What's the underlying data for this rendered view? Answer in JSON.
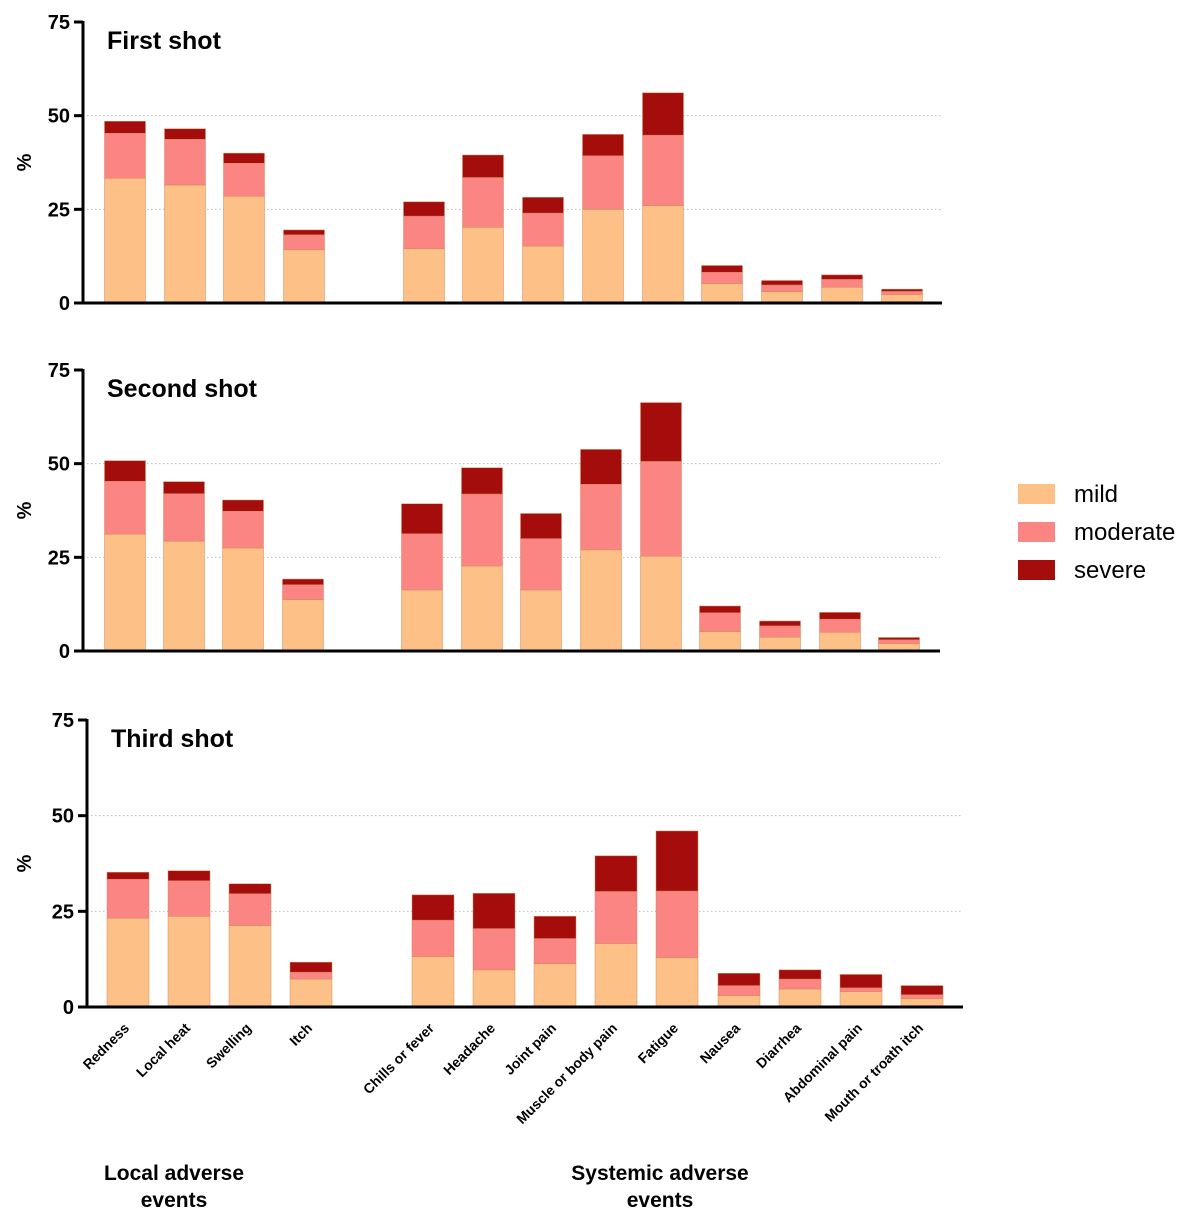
{
  "legend": {
    "entries": [
      {
        "key": "mild",
        "label": "mild",
        "color": "#FDC086"
      },
      {
        "key": "moderate",
        "label": "moderate",
        "color": "#FA8583"
      },
      {
        "key": "severe",
        "label": "severe",
        "color": "#A50C0C"
      }
    ]
  },
  "group_labels": {
    "local": [
      "Local adverse",
      "events"
    ],
    "systemic": [
      "Systemic adverse",
      "events"
    ]
  },
  "chart_data": [
    {
      "type": "bar",
      "stacked": true,
      "title": "First shot",
      "ylabel": "%",
      "ylim": [
        0,
        75
      ],
      "yticks": [
        0,
        25,
        50,
        75
      ],
      "grid": "horizontal dotted",
      "categories": [
        "Redness",
        "Local heat",
        "Swelling",
        "Itch",
        "Chills or fever",
        "Headache",
        "Joint pain",
        "Muscle or body pain",
        "Fatigue",
        "Nausea",
        "Diarrhea",
        "Abdominal pain",
        "Mouth or troath itch"
      ],
      "series": [
        {
          "name": "mild",
          "values": [
            33.3,
            31.5,
            28.5,
            14.2,
            14.5,
            20.2,
            15.2,
            25.0,
            26.0,
            5.2,
            3.0,
            4.2,
            2.2
          ]
        },
        {
          "name": "moderate",
          "values": [
            12.0,
            12.2,
            8.8,
            4.0,
            8.7,
            13.3,
            8.8,
            14.3,
            18.8,
            3.0,
            1.8,
            2.1,
            0.9
          ]
        },
        {
          "name": "severe",
          "values": [
            3.2,
            2.8,
            2.7,
            1.3,
            3.8,
            6.0,
            4.2,
            5.7,
            11.3,
            1.8,
            1.2,
            1.2,
            0.6
          ]
        }
      ]
    },
    {
      "type": "bar",
      "stacked": true,
      "title": "Second shot",
      "ylabel": "%",
      "ylim": [
        0,
        75
      ],
      "yticks": [
        0,
        25,
        50,
        75
      ],
      "grid": "horizontal dotted",
      "categories": [
        "Redness",
        "Local heat",
        "Swelling",
        "Itch",
        "Chills or fever",
        "Headache",
        "Joint pain",
        "Muscle or body pain",
        "Fatigue",
        "Nausea",
        "Diarrhea",
        "Abdominal pain",
        "Mouth or troath itch"
      ],
      "series": [
        {
          "name": "mild",
          "values": [
            31.2,
            29.3,
            27.5,
            13.7,
            16.3,
            22.7,
            16.3,
            27.0,
            25.3,
            5.2,
            3.7,
            5.0,
            2.0
          ]
        },
        {
          "name": "moderate",
          "values": [
            14.1,
            12.7,
            9.8,
            4.0,
            15.0,
            19.2,
            13.7,
            17.5,
            25.3,
            5.0,
            3.0,
            3.5,
            1.0
          ]
        },
        {
          "name": "severe",
          "values": [
            5.5,
            3.2,
            3.0,
            1.5,
            8.0,
            7.0,
            6.7,
            9.3,
            15.7,
            1.8,
            1.3,
            1.8,
            0.6
          ]
        }
      ]
    },
    {
      "type": "bar",
      "stacked": true,
      "title": "Third shot",
      "ylabel": "%",
      "ylim": [
        0,
        75
      ],
      "yticks": [
        0,
        25,
        50,
        75
      ],
      "grid": "horizontal dotted",
      "categories": [
        "Redness",
        "Local heat",
        "Swelling",
        "Itch",
        "Chills or fever",
        "Headache",
        "Joint pain",
        "Muscle or body pain",
        "Fatigue",
        "Nausea",
        "Diarrhea",
        "Abdominal pain",
        "Mouth or troath itch"
      ],
      "series": [
        {
          "name": "mild",
          "values": [
            23.2,
            23.7,
            21.3,
            7.3,
            13.2,
            9.7,
            11.3,
            16.6,
            12.9,
            3.0,
            4.7,
            4.0,
            2.2
          ]
        },
        {
          "name": "moderate",
          "values": [
            10.2,
            9.3,
            8.3,
            1.8,
            9.5,
            10.8,
            6.6,
            13.6,
            17.4,
            2.6,
            2.6,
            1.0,
            1.0
          ]
        },
        {
          "name": "severe",
          "values": [
            1.8,
            2.6,
            2.6,
            2.6,
            6.6,
            9.2,
            5.8,
            9.3,
            15.7,
            3.2,
            2.4,
            3.5,
            2.4
          ]
        }
      ]
    }
  ]
}
